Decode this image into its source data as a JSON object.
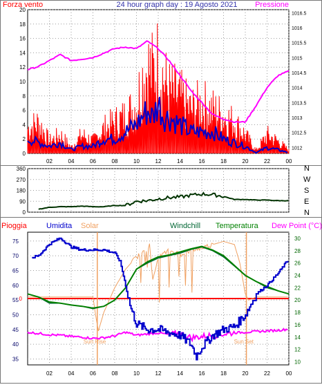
{
  "header": {
    "left_label": "Forza vento",
    "title": "24 hour graph day : 19 Agosto 2021",
    "right_label": "Pressione"
  },
  "colors": {
    "wind": "#ff0000",
    "gust_wind": "#ff0000",
    "avg_wind": "#0000cc",
    "pressure": "#ff00ff",
    "direction": "#003300",
    "rain": "#ff0000",
    "humidity": "#0000cc",
    "solar": "#f0a060",
    "windchill": "#006633",
    "temperature": "#008000",
    "dewpoint": "#ff00ff",
    "grid": "#9a9a9a"
  },
  "legend_bottom": {
    "rain": "Pioggia",
    "humidity": "Umidita",
    "solar": "Solar",
    "windchill": "Windchill",
    "temperature": "Temperatura",
    "dewpoint": "Dew Point (°C)"
  },
  "compass": [
    "N",
    "W",
    "S",
    "E",
    "N"
  ],
  "sun_labels": {
    "rise": "Sun Rise",
    "set": "Sun Set"
  },
  "chart_data": [
    {
      "type": "line",
      "name_hint": "wind_pressure",
      "x_ticks": [
        "02",
        "04",
        "06",
        "08",
        "10",
        "12",
        "14",
        "16",
        "18",
        "20",
        "22",
        "00"
      ],
      "x_range": [
        0,
        24
      ],
      "y_left_ticks": [
        "0",
        "2",
        "4",
        "6",
        "8",
        "10",
        "12",
        "14",
        "16",
        "18",
        "20"
      ],
      "y_left_range": [
        0,
        20
      ],
      "y_right_ticks": [
        "1012",
        "1012.5",
        "1013",
        "1013.5",
        "1014",
        "1014.5",
        "1015",
        "1015.5",
        "1016",
        "1016.5"
      ],
      "y_right_range": [
        1011.8,
        1016.6
      ],
      "series": [
        {
          "name": "Forza vento",
          "axis": "left",
          "x": [
            0,
            1,
            2,
            3,
            4,
            5,
            6,
            7,
            8,
            9,
            10,
            10.5,
            11,
            11.5,
            12,
            12.5,
            13,
            14,
            15,
            16,
            17,
            18,
            19,
            20,
            21,
            22,
            23,
            24
          ],
          "y": [
            4,
            5,
            2,
            3,
            1,
            3,
            2,
            4,
            5,
            6,
            8,
            12,
            14,
            13,
            15,
            12,
            10,
            9,
            7,
            8,
            7,
            6,
            5,
            3,
            0.5,
            3,
            2,
            0.5
          ]
        },
        {
          "name": "Avg wind",
          "axis": "left",
          "x": [
            0,
            1,
            2,
            3,
            4,
            5,
            6,
            7,
            8,
            9,
            10,
            10.5,
            11,
            11.5,
            12,
            12.5,
            13,
            14,
            15,
            16,
            17,
            18,
            19,
            20,
            21,
            22,
            23,
            24
          ],
          "y": [
            2,
            1.5,
            1,
            1.5,
            0.5,
            1,
            1,
            2,
            2,
            3,
            4,
            5,
            6,
            5,
            7,
            5,
            5,
            4,
            3,
            3,
            3,
            2,
            1.5,
            1,
            0.1,
            0.8,
            0.5,
            0.1
          ]
        },
        {
          "name": "Pressione",
          "axis": "right",
          "x": [
            0,
            1,
            2,
            3,
            4,
            5,
            6,
            7,
            8,
            9,
            10,
            11,
            12,
            13,
            14,
            15,
            16,
            17,
            18,
            19,
            20,
            21,
            22,
            23,
            24
          ],
          "y": [
            1014.6,
            1014.7,
            1014.9,
            1015.1,
            1014.9,
            1014.95,
            1015.0,
            1015.15,
            1015.3,
            1015.35,
            1015.3,
            1015.55,
            1015.3,
            1014.9,
            1014.4,
            1013.9,
            1013.5,
            1013.1,
            1012.95,
            1012.85,
            1012.85,
            1013.4,
            1014.0,
            1014.4,
            1014.55
          ]
        }
      ]
    },
    {
      "type": "line",
      "name_hint": "wind_direction",
      "y_ticks": [
        "0",
        "90",
        "180",
        "270",
        "360"
      ],
      "y_range": [
        0,
        360
      ],
      "series": [
        {
          "name": "Direction",
          "x": [
            0,
            1,
            2,
            3,
            4,
            5,
            6,
            7,
            8,
            9,
            10,
            11,
            12,
            13,
            14,
            15,
            16,
            17,
            18,
            19,
            20,
            21,
            22,
            23,
            24
          ],
          "y": [
            20,
            25,
            40,
            45,
            45,
            50,
            45,
            45,
            55,
            55,
            90,
            95,
            110,
            120,
            125,
            140,
            150,
            145,
            130,
            105,
            105,
            100,
            100,
            95,
            95
          ]
        }
      ]
    },
    {
      "type": "line",
      "name_hint": "hum_temp",
      "x_ticks": [
        "02",
        "04",
        "06",
        "08",
        "10",
        "12",
        "14",
        "16",
        "18",
        "20",
        "22",
        "00"
      ],
      "x_range": [
        0,
        24
      ],
      "y_left_ticks": [
        "35",
        "40",
        "45",
        "50",
        "55",
        "60",
        "65",
        "70",
        "75"
      ],
      "y_left_range": [
        33,
        78
      ],
      "y_right_ticks": [
        "10",
        "12",
        "14",
        "16",
        "18",
        "20",
        "22",
        "24",
        "26",
        "28",
        "30"
      ],
      "y_right_range": [
        9.5,
        31
      ],
      "rain_zero_label": "0",
      "sunrise_hour": 6.4,
      "sunset_hour": 20.1,
      "series": [
        {
          "name": "Umidita",
          "axis": "left",
          "x": [
            0,
            1,
            2,
            3,
            4,
            5,
            6,
            7,
            8,
            8.5,
            9,
            9.5,
            10,
            11,
            12,
            13,
            14,
            15,
            15.5,
            16,
            17,
            18,
            19,
            20,
            21,
            22,
            23,
            24
          ],
          "y": [
            69,
            70,
            74,
            76,
            73,
            72,
            72,
            72,
            71,
            68,
            60,
            52,
            47,
            45,
            45,
            44,
            43,
            40,
            36,
            39,
            43,
            45,
            46,
            50,
            57,
            60,
            64,
            69
          ]
        },
        {
          "name": "Solar",
          "axis": "right",
          "x": [
            0,
            6,
            6.3,
            6.5,
            7,
            8,
            9,
            10,
            11,
            11.2,
            11.5,
            12,
            13,
            14,
            15,
            16,
            17,
            18,
            19,
            19.5,
            20,
            20.3,
            21,
            22,
            24
          ],
          "y": [
            20.5,
            20.5,
            17,
            15,
            18,
            22,
            25,
            27,
            28,
            29.5,
            23,
            27,
            28,
            27.5,
            28,
            28.5,
            29,
            29.5,
            29,
            26,
            21,
            20,
            20.5,
            20.5,
            20.5
          ]
        },
        {
          "name": "Windchill",
          "axis": "right",
          "x": [
            0,
            1,
            2,
            3,
            4,
            5,
            6,
            7,
            8,
            9,
            10,
            11,
            12,
            13,
            14,
            15,
            16,
            17,
            18,
            19,
            20,
            21,
            22,
            23,
            24
          ],
          "y": [
            21,
            20.5,
            19.5,
            19.5,
            19.2,
            19,
            18.6,
            19,
            20,
            22,
            25,
            26,
            26.8,
            27.2,
            27.6,
            28.2,
            28.6,
            28,
            27,
            25.5,
            24,
            23,
            22,
            21.5,
            21
          ]
        },
        {
          "name": "Temperatura",
          "axis": "right",
          "x": [
            0,
            1,
            2,
            3,
            4,
            5,
            6,
            7,
            8,
            9,
            10,
            11,
            12,
            13,
            14,
            15,
            16,
            17,
            18,
            19,
            20,
            21,
            22,
            23,
            24
          ],
          "y": [
            21,
            20.5,
            19.7,
            19.5,
            19.2,
            19,
            18.7,
            19,
            20,
            22,
            25,
            26.2,
            27,
            27.3,
            27.8,
            28.3,
            28.7,
            28.1,
            27.2,
            25.6,
            24,
            23,
            22.2,
            21.5,
            21
          ]
        },
        {
          "name": "Dew Point",
          "axis": "right",
          "x": [
            0,
            1,
            2,
            3,
            4,
            5,
            6,
            7,
            8,
            9,
            10,
            11,
            12,
            13,
            14,
            15,
            16,
            17,
            18,
            19,
            20,
            21,
            22,
            23,
            24
          ],
          "y": [
            14.8,
            14.6,
            14.4,
            14.3,
            14.1,
            14,
            13.8,
            13.9,
            14.2,
            14.8,
            14.3,
            14.5,
            14.7,
            14.4,
            14.6,
            13.9,
            14.1,
            14.3,
            14.5,
            14.7,
            14.8,
            14.9,
            15,
            15.1,
            15.3
          ]
        }
      ]
    }
  ]
}
